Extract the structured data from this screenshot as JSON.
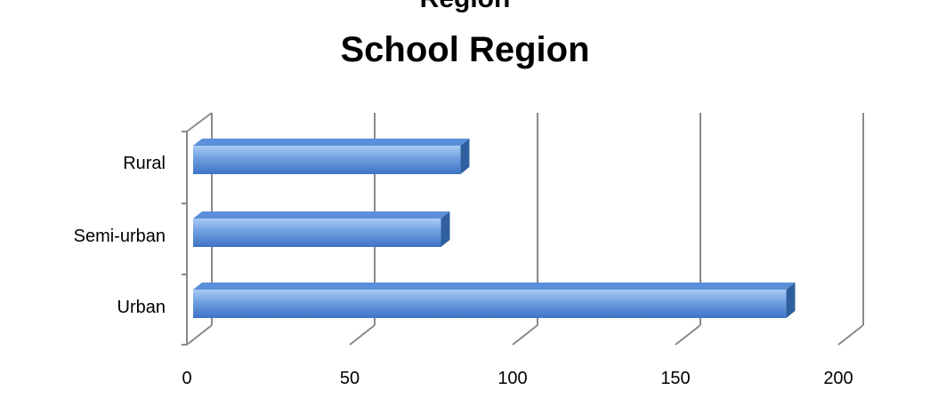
{
  "chart_data": {
    "type": "bar",
    "orientation": "horizontal",
    "title": "School Region",
    "clipped_header": "Region",
    "categories": [
      "Rural",
      "Semi-urban",
      "Urban"
    ],
    "values": [
      84,
      78,
      184
    ],
    "xlim": [
      0,
      200
    ],
    "x_ticks": [
      "0",
      "50",
      "100",
      "150",
      "200"
    ],
    "xlabel": "",
    "ylabel": "",
    "grid": "vertical",
    "legend": "none",
    "bar_color": "#5b8fd9",
    "bar_highlight": "#9fc3f2",
    "bar_shadow": "#2f5f9e"
  }
}
